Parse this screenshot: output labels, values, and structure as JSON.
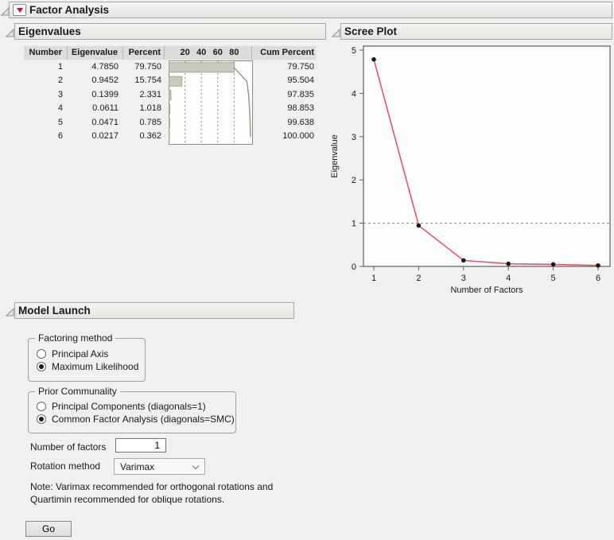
{
  "factor_analysis": {
    "title": "Factor Analysis"
  },
  "eigenvalues": {
    "title": "Eigenvalues",
    "columns": {
      "number": "Number",
      "eigenvalue": "Eigenvalue",
      "percent": "Percent",
      "cum_percent": "Cum Percent"
    },
    "bar_axis_ticks": [
      "20",
      "40",
      "60",
      "80"
    ],
    "rows": [
      {
        "number": "1",
        "eigenvalue": "4.7850",
        "percent": "79.750",
        "cum_percent": "79.750"
      },
      {
        "number": "2",
        "eigenvalue": "0.9452",
        "percent": "15.754",
        "cum_percent": "95.504"
      },
      {
        "number": "3",
        "eigenvalue": "0.1399",
        "percent": "2.331",
        "cum_percent": "97.835"
      },
      {
        "number": "4",
        "eigenvalue": "0.0611",
        "percent": "1.018",
        "cum_percent": "98.853"
      },
      {
        "number": "5",
        "eigenvalue": "0.0471",
        "percent": "0.785",
        "cum_percent": "99.638"
      },
      {
        "number": "6",
        "eigenvalue": "0.0217",
        "percent": "0.362",
        "cum_percent": "100.000"
      }
    ]
  },
  "scree_plot": {
    "title": "Scree Plot"
  },
  "chart_data": [
    {
      "type": "line",
      "title": "Scree Plot",
      "x": [
        1,
        2,
        3,
        4,
        5,
        6
      ],
      "y": [
        4.785,
        0.9452,
        0.1399,
        0.0611,
        0.0471,
        0.0217
      ],
      "xlabel": "Number of Factors",
      "ylabel": "Eigenvalue",
      "xticks": [
        1,
        2,
        3,
        4,
        5,
        6
      ],
      "yticks": [
        0,
        1,
        2,
        3,
        4,
        5
      ],
      "ylim": [
        0,
        5.2
      ],
      "dashed_gridlines_y": [
        0,
        1
      ],
      "grid": "dashed horizontal at 0 and 1 only",
      "legend_position": "none",
      "line_color": "#e8556d",
      "marker_color": "#1a1a1a"
    },
    {
      "type": "bar",
      "title": "Eigenvalue percent bars with cumulative percent line (inside table)",
      "categories": [
        1,
        2,
        3,
        4,
        5,
        6
      ],
      "values": [
        79.75,
        15.754,
        2.331,
        1.018,
        0.785,
        0.362
      ],
      "cumulative": [
        79.75,
        95.504,
        97.835,
        98.853,
        99.638,
        100.0
      ],
      "axis_ticks": [
        20,
        40,
        60,
        80
      ],
      "xlim": [
        0,
        102
      ],
      "bar_color": "#c9c9bd",
      "bar_stroke": "#a3a396",
      "line_color": "#9a9a90"
    }
  ],
  "model_launch": {
    "title": "Model Launch",
    "factoring_method": {
      "legend": "Factoring method",
      "options": [
        {
          "label": "Principal Axis",
          "selected": false
        },
        {
          "label": "Maximum Likelihood",
          "selected": true
        }
      ]
    },
    "prior_communality": {
      "legend": "Prior Communality",
      "options": [
        {
          "label": "Principal Components (diagonals=1)",
          "selected": false
        },
        {
          "label": "Common Factor Analysis (diagonals=SMC)",
          "selected": true
        }
      ]
    },
    "number_of_factors": {
      "label": "Number of factors",
      "value": "1"
    },
    "rotation_method": {
      "label": "Rotation method",
      "value": "Varimax"
    },
    "note": "Note: Varimax recommended for orthogonal rotations and Quartimin recommended for oblique rotations.",
    "go_label": "Go"
  },
  "colors": {
    "background": "#f0f0ee",
    "scree_line": "#e8556d",
    "marker": "#1a1a1a",
    "bar_fill": "#c9c9bd",
    "red_menu_triangle": "#c41230",
    "header_border": "#a6a6a2"
  }
}
